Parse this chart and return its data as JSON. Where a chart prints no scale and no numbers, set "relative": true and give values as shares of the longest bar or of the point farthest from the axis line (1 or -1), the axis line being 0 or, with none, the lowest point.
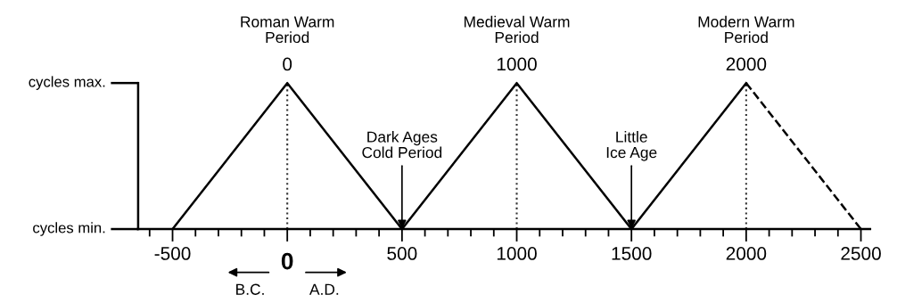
{
  "chart_data": {
    "type": "line",
    "series": [
      {
        "color": "#000000",
        "x": [
          -500,
          0,
          500,
          1000,
          1500,
          2000
        ],
        "values": [
          0,
          1,
          0,
          1,
          0,
          1
        ],
        "line_style": "solid"
      },
      {
        "color": "#000000",
        "x": [
          2000,
          2500
        ],
        "values": [
          1,
          0
        ],
        "line_style": "dashed"
      }
    ],
    "xlim": [
      -650,
      2540
    ],
    "relative": true,
    "xticks": [
      {
        "value": -600,
        "label": null
      },
      -500,
      {
        "value": -400,
        "label": null
      },
      {
        "value": -300,
        "label": null
      },
      {
        "value": -200,
        "label": null
      },
      {
        "value": -100,
        "label": null
      },
      0,
      {
        "value": 100,
        "label": null
      },
      {
        "value": 200,
        "label": null
      },
      {
        "value": 300,
        "label": null
      },
      {
        "value": 400,
        "label": null
      },
      500,
      {
        "value": 600,
        "label": null
      },
      {
        "value": 700,
        "label": null
      },
      {
        "value": 800,
        "label": null
      },
      {
        "value": 900,
        "label": null
      },
      1000,
      {
        "value": 1100,
        "label": null
      },
      {
        "value": 1200,
        "label": null
      },
      {
        "value": 1300,
        "label": null
      },
      {
        "value": 1400,
        "label": null
      },
      1500,
      {
        "value": 1600,
        "label": null
      },
      {
        "value": 1700,
        "label": null
      },
      {
        "value": 1800,
        "label": null
      },
      {
        "value": 1900,
        "label": null
      },
      2000,
      {
        "value": 2100,
        "label": null
      },
      {
        "value": 2200,
        "label": null
      },
      {
        "value": 2300,
        "label": null
      },
      {
        "value": 2400,
        "label": null
      },
      2500
    ],
    "ref_lines": [
      {
        "axis": "x",
        "value": 0,
        "label": null,
        "color": "#333333",
        "line_style": "dotted"
      },
      {
        "axis": "x",
        "value": 1000,
        "label": null,
        "color": "#333333",
        "line_style": "dotted"
      },
      {
        "axis": "x",
        "value": 2000,
        "label": null,
        "color": "#333333",
        "line_style": "dotted"
      }
    ],
    "annotations": [
      {
        "text": "Roman Warm\nPeriod",
        "x": 0,
        "y": 1
      },
      {
        "text": "0",
        "x": 0,
        "y": 1
      },
      {
        "text": "Medieval Warm\nPeriod",
        "x": 1000,
        "y": 1
      },
      {
        "text": "1000",
        "x": 1000,
        "y": 1
      },
      {
        "text": "Modern Warm\nPeriod",
        "x": 2000,
        "y": 1
      },
      {
        "text": "2000",
        "x": 2000,
        "y": 1
      },
      {
        "text": "Dark Ages\nCold Period",
        "x": 500,
        "y": 0
      },
      {
        "text": "Little\nIce Age",
        "x": 1500,
        "y": 0
      },
      "B.C.",
      "A.D.",
      "cycles min.",
      "cycles max."
    ],
    "grid": false,
    "marker": "none"
  }
}
